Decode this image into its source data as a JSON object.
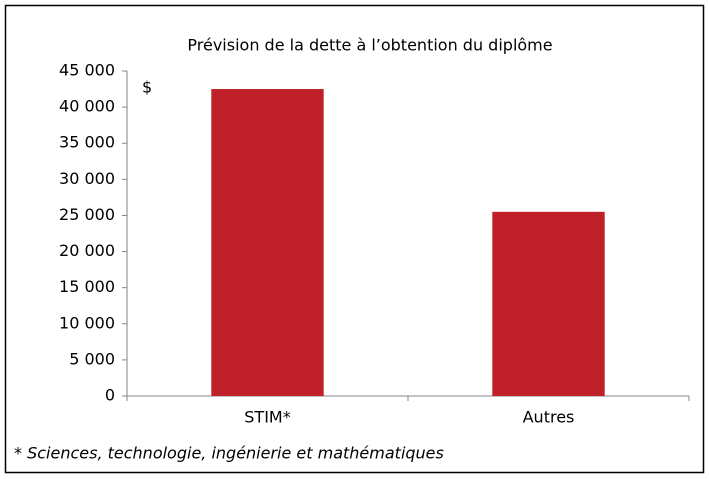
{
  "chart_data": {
    "type": "bar",
    "title": "Prévision de la dette à l’obtention du diplôme",
    "ylabel": "$",
    "categories": [
      "STIM*",
      "Autres"
    ],
    "values": [
      42500,
      25500
    ],
    "color": "#c0202a",
    "ylim": [
      0,
      45000
    ],
    "yticks": [
      0,
      {
        "value": 5000,
        "label": "5 000"
      },
      {
        "value": 10000,
        "label": "10 000"
      },
      {
        "value": 15000,
        "label": "15 000"
      },
      {
        "value": 20000,
        "label": "20 000"
      },
      {
        "value": 25000,
        "label": "25 000"
      },
      {
        "value": 30000,
        "label": "30 000"
      },
      {
        "value": 35000,
        "label": "35 000"
      },
      {
        "value": 40000,
        "label": "40 000"
      },
      {
        "value": 45000,
        "label": "45 000"
      }
    ],
    "grid": false,
    "note": "* Sciences, technologie, ingénierie et mathématiques"
  }
}
